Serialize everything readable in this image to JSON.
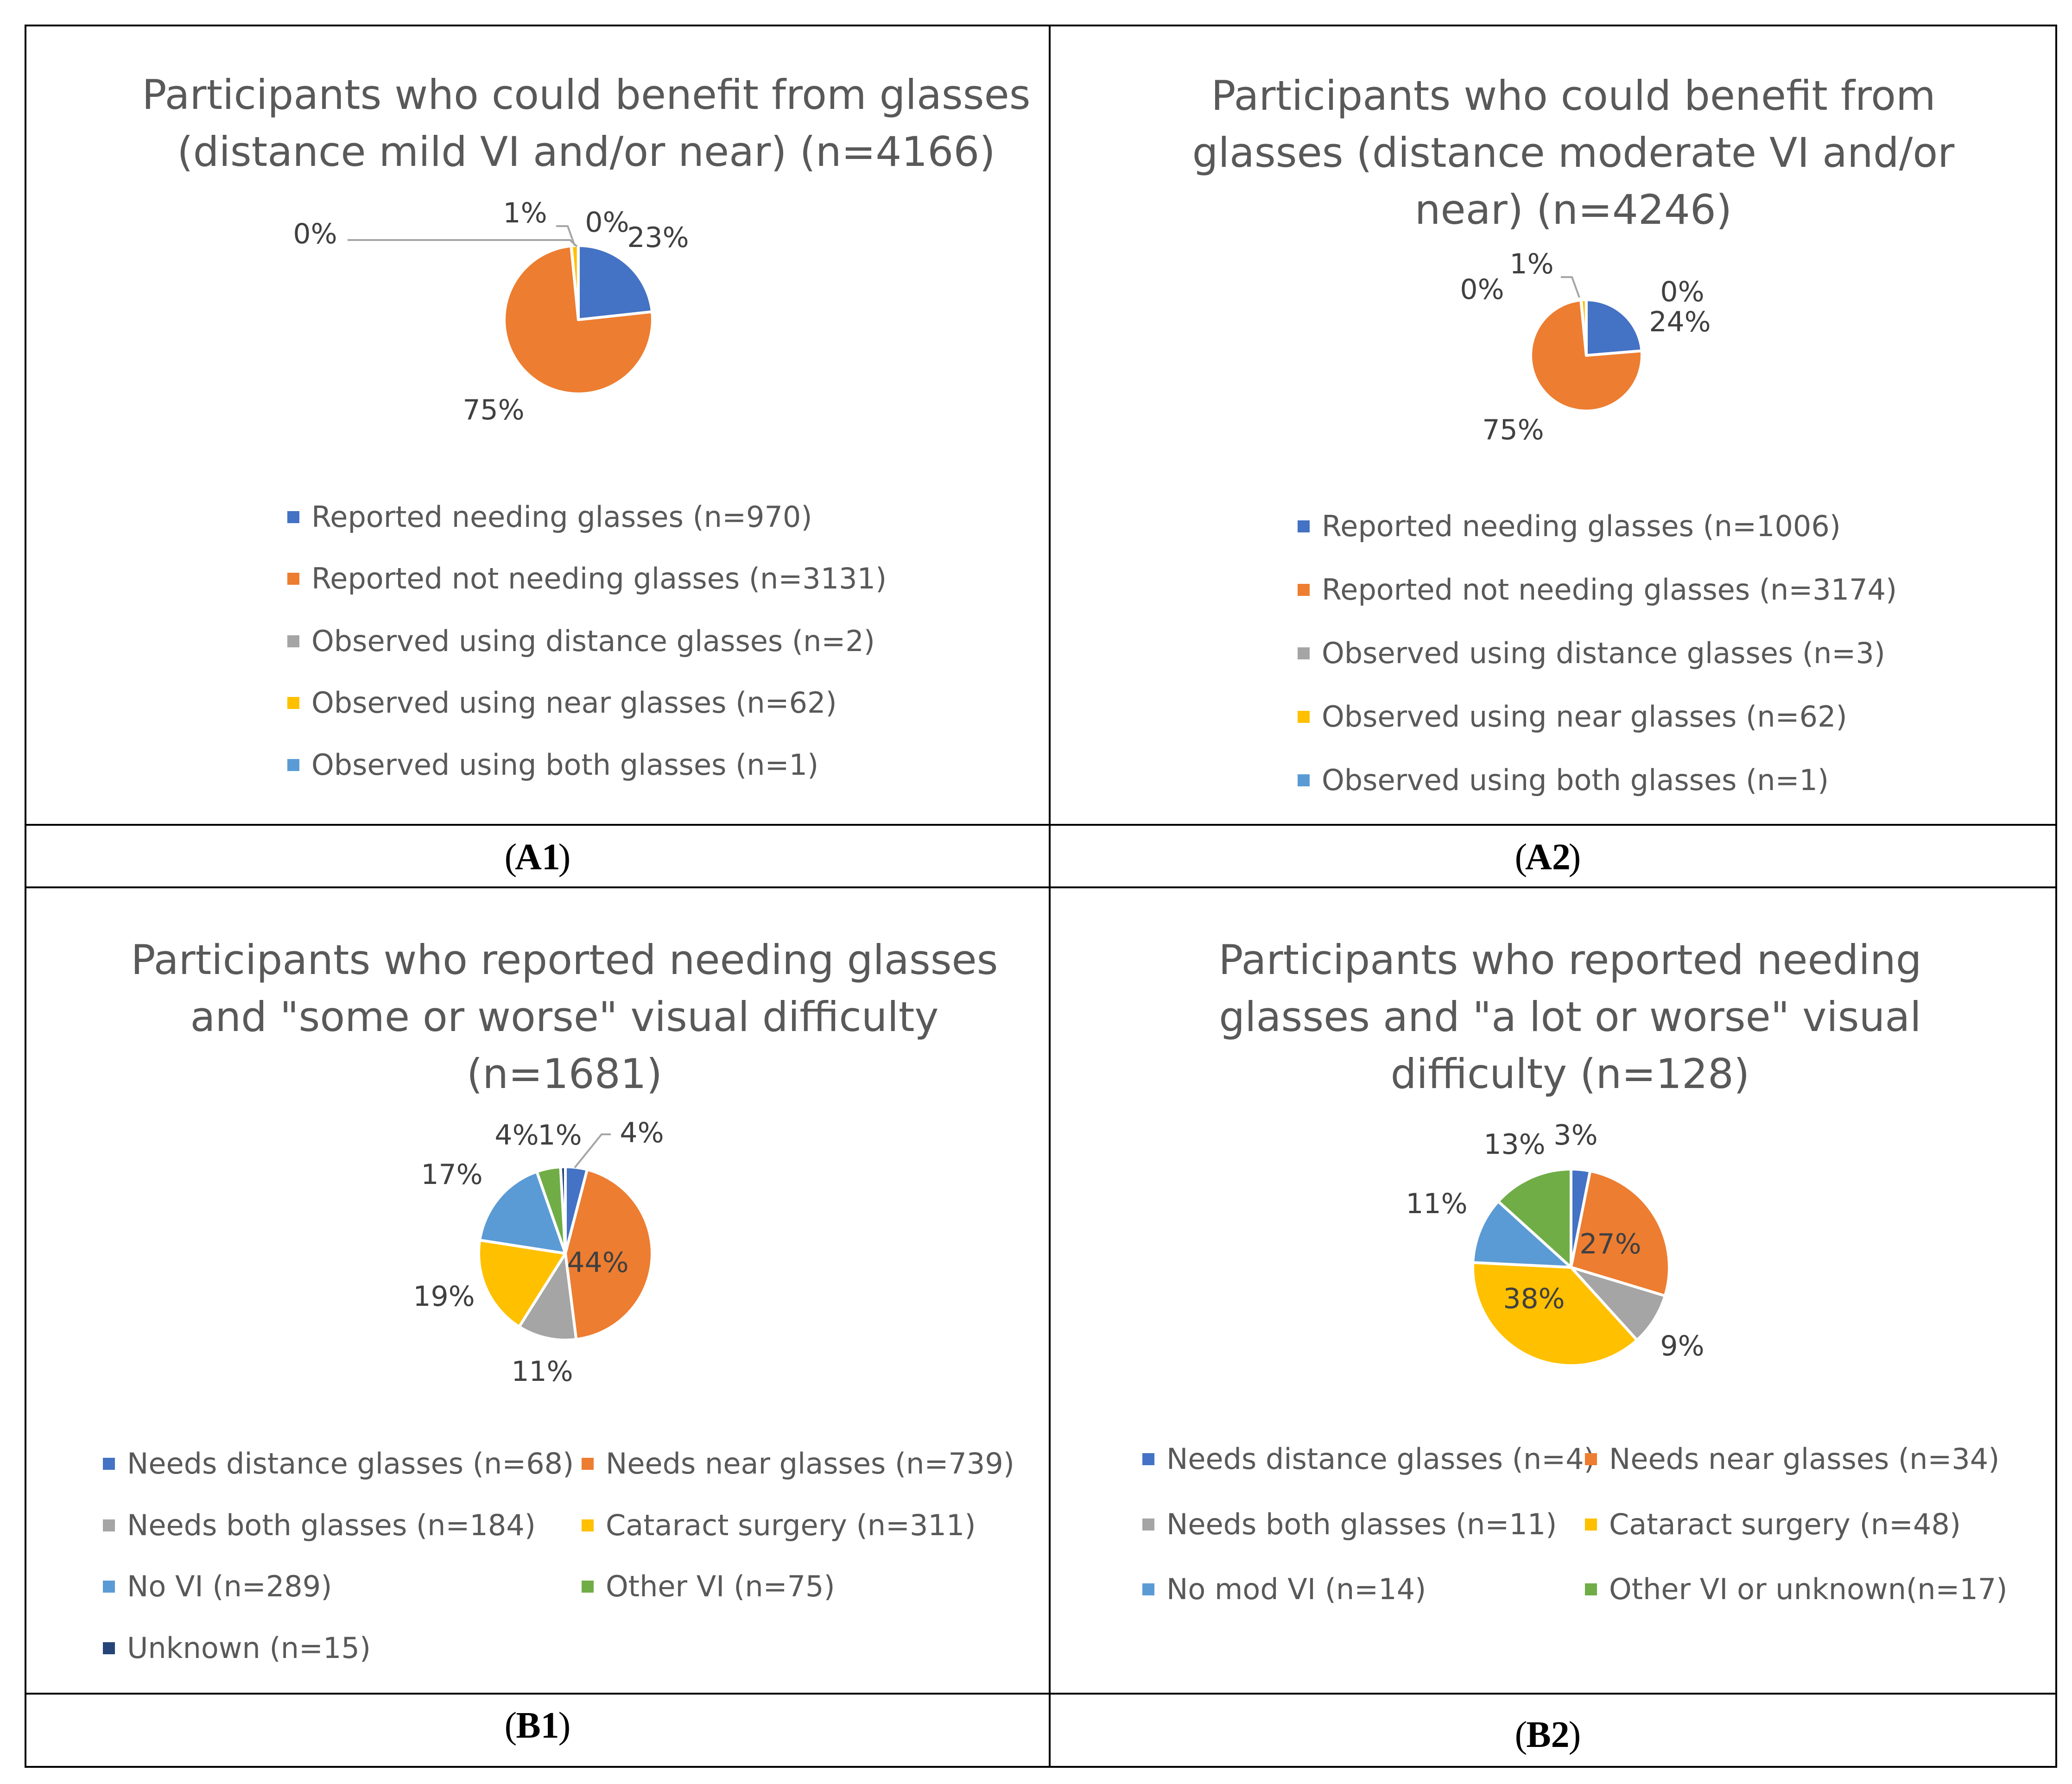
{
  "chart_data": [
    {
      "panel": "A1",
      "type": "pie",
      "title_lines": [
        "Participants who could benefit from glasses",
        "(distance mild VI and/or near) (n=4166)"
      ],
      "caption": "A1",
      "slices": [
        {
          "label": "Reported needing glasses (n=970)",
          "value": 970,
          "percent_label": "23%",
          "color": "#4472C4"
        },
        {
          "label": "Reported not needing glasses (n=3131)",
          "value": 3131,
          "percent_label": "75%",
          "color": "#ED7D31"
        },
        {
          "label": "Observed using distance glasses (n=2)",
          "value": 2,
          "percent_label": "0%",
          "color": "#A5A5A5"
        },
        {
          "label": "Observed using near glasses (n=62)",
          "value": 62,
          "percent_label": "1%",
          "color": "#FFC000"
        },
        {
          "label": "Observed using both glasses (n=1)",
          "value": 1,
          "percent_label": "0%",
          "color": "#5B9BD5"
        }
      ]
    },
    {
      "panel": "A2",
      "type": "pie",
      "title_lines": [
        "Participants who could benefit from",
        "glasses (distance moderate VI and/or",
        "near) (n=4246)"
      ],
      "caption": "A2",
      "slices": [
        {
          "label": "Reported needing glasses (n=1006)",
          "value": 1006,
          "percent_label": "24%",
          "color": "#4472C4"
        },
        {
          "label": "Reported not needing glasses (n=3174)",
          "value": 3174,
          "percent_label": "75%",
          "color": "#ED7D31"
        },
        {
          "label": "Observed using distance glasses (n=3)",
          "value": 3,
          "percent_label": "0%",
          "color": "#A5A5A5"
        },
        {
          "label": "Observed using near glasses (n=62)",
          "value": 62,
          "percent_label": "1%",
          "color": "#FFC000"
        },
        {
          "label": "Observed using both glasses (n=1)",
          "value": 1,
          "percent_label": "0%",
          "color": "#5B9BD5"
        }
      ]
    },
    {
      "panel": "B1",
      "type": "pie",
      "title_lines": [
        "Participants who reported needing glasses",
        "and \"some or worse\" visual difficulty",
        "(n=1681)"
      ],
      "caption": "B1",
      "slices": [
        {
          "label": "Needs distance glasses (n=68)",
          "value": 68,
          "percent_label": "4%",
          "color": "#4472C4"
        },
        {
          "label": "Needs near glasses (n=739)",
          "value": 739,
          "percent_label": "44%",
          "color": "#ED7D31"
        },
        {
          "label": "Needs both glasses (n=184)",
          "value": 184,
          "percent_label": "11%",
          "color": "#A5A5A5"
        },
        {
          "label": "Cataract surgery (n=311)",
          "value": 311,
          "percent_label": "19%",
          "color": "#FFC000"
        },
        {
          "label": "No VI (n=289)",
          "value": 289,
          "percent_label": "17%",
          "color": "#5B9BD5"
        },
        {
          "label": "Other VI (n=75)",
          "value": 75,
          "percent_label": "4%",
          "color": "#70AD47"
        },
        {
          "label": "Unknown (n=15)",
          "value": 15,
          "percent_label": "1%",
          "color": "#264478"
        }
      ]
    },
    {
      "panel": "B2",
      "type": "pie",
      "title_lines": [
        "Participants who reported needing",
        "glasses and \"a lot or worse\" visual",
        "difficulty  (n=128)"
      ],
      "caption": "B2",
      "slices": [
        {
          "label": "Needs distance glasses (n=4)",
          "value": 4,
          "percent_label": "3%",
          "color": "#4472C4"
        },
        {
          "label": "Needs near glasses (n=34)",
          "value": 34,
          "percent_label": "27%",
          "color": "#ED7D31"
        },
        {
          "label": "Needs both glasses (n=11)",
          "value": 11,
          "percent_label": "9%",
          "color": "#A5A5A5"
        },
        {
          "label": "Cataract surgery (n=48)",
          "value": 48,
          "percent_label": "38%",
          "color": "#FFC000"
        },
        {
          "label": "No mod VI (n=14)",
          "value": 14,
          "percent_label": "11%",
          "color": "#5B9BD5"
        },
        {
          "label": "Other VI or unknown(n=17)",
          "value": 17,
          "percent_label": "13%",
          "color": "#70AD47"
        }
      ]
    }
  ]
}
